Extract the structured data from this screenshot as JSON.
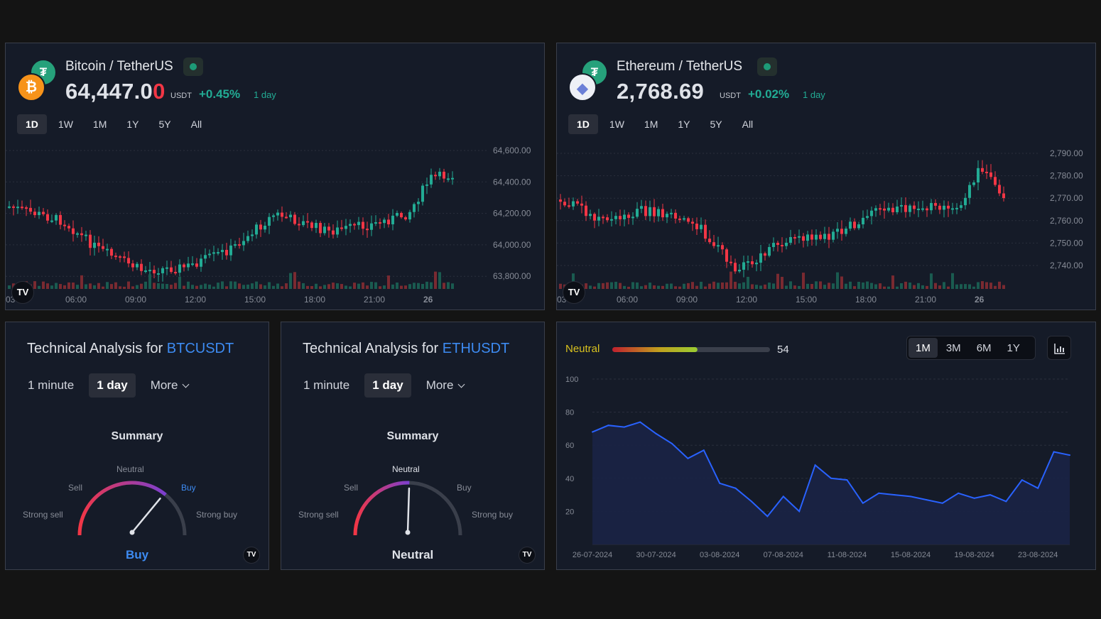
{
  "btc": {
    "pair": "Bitcoin / TetherUS",
    "base_icon": "bitcoin-icon",
    "quote_icon": "tether-icon",
    "base_glyph": "₿",
    "quote_glyph": "₮",
    "price_main": "64,447.0",
    "price_last": "0",
    "unit": "USDT",
    "change": "+0.45%",
    "period": "1 day",
    "ranges": [
      "1D",
      "1W",
      "1M",
      "1Y",
      "5Y",
      "All"
    ],
    "active_range": "1D",
    "y_ticks": [
      "64,600.00",
      "64,400.00",
      "64,200.00",
      "64,000.00",
      "63,800.00"
    ],
    "x_ticks": [
      "03",
      "06:00",
      "09:00",
      "12:00",
      "15:00",
      "18:00",
      "21:00",
      "26"
    ],
    "badge": "TV"
  },
  "eth": {
    "pair": "Ethereum / TetherUS",
    "base_icon": "ethereum-icon",
    "quote_icon": "tether-icon",
    "base_glyph": "◆",
    "quote_glyph": "₮",
    "price_main": "2,768.69",
    "price_last": "",
    "unit": "USDT",
    "change": "+0.02%",
    "period": "1 day",
    "ranges": [
      "1D",
      "1W",
      "1M",
      "1Y",
      "5Y",
      "All"
    ],
    "active_range": "1D",
    "y_ticks": [
      "2,790.00",
      "2,780.00",
      "2,770.00",
      "2,760.00",
      "2,750.00",
      "2,740.00"
    ],
    "x_ticks": [
      "03",
      "06:00",
      "09:00",
      "12:00",
      "15:00",
      "18:00",
      "21:00",
      "26"
    ],
    "badge": "TV"
  },
  "ta_btc": {
    "title_prefix": "Technical Analysis for ",
    "symbol": "BTCUSDT",
    "tabs": [
      "1 minute",
      "1 day",
      "More"
    ],
    "active_tab": "1 day",
    "summary": "Summary",
    "labels": {
      "strong_sell": "Strong sell",
      "sell": "Sell",
      "neutral": "Neutral",
      "buy": "Buy",
      "strong_buy": "Strong buy"
    },
    "result": "Buy",
    "result_color": "#3d8bf2",
    "needle_level": 0.72,
    "badge": "TV"
  },
  "ta_eth": {
    "title_prefix": "Technical Analysis for ",
    "symbol": "ETHUSDT",
    "tabs": [
      "1 minute",
      "1 day",
      "More"
    ],
    "active_tab": "1 day",
    "summary": "Summary",
    "labels": {
      "strong_sell": "Strong sell",
      "sell": "Sell",
      "neutral": "Neutral",
      "buy": "Buy",
      "strong_buy": "Strong buy"
    },
    "result": "Neutral",
    "result_color": "#dfe2e8",
    "needle_level": 0.51,
    "badge": "TV"
  },
  "fear_greed": {
    "label": "Neutral",
    "value": "54",
    "gauge_fraction": 0.54,
    "ranges": [
      "1M",
      "3M",
      "6M",
      "1Y"
    ],
    "active_range": "1M",
    "chart_button_icon": "bar-chart-icon"
  },
  "chart_data": [
    {
      "type": "line",
      "title": "",
      "xlabel": "",
      "ylabel": "",
      "x_tick_labels": [
        "26-07-2024",
        "30-07-2024",
        "03-08-2024",
        "07-08-2024",
        "11-08-2024",
        "15-08-2024",
        "19-08-2024",
        "23-08-2024"
      ],
      "y_ticks": [
        20,
        40,
        60,
        80,
        100
      ],
      "ylim": [
        0,
        100
      ],
      "grid": true,
      "x": [
        "26-07-2024",
        "27-07-2024",
        "28-07-2024",
        "29-07-2024",
        "30-07-2024",
        "31-07-2024",
        "01-08-2024",
        "02-08-2024",
        "03-08-2024",
        "04-08-2024",
        "05-08-2024",
        "06-08-2024",
        "07-08-2024",
        "08-08-2024",
        "09-08-2024",
        "10-08-2024",
        "11-08-2024",
        "12-08-2024",
        "13-08-2024",
        "14-08-2024",
        "15-08-2024",
        "16-08-2024",
        "17-08-2024",
        "18-08-2024",
        "19-08-2024",
        "20-08-2024",
        "21-08-2024",
        "22-08-2024",
        "23-08-2024",
        "24-08-2024",
        "25-08-2024"
      ],
      "values": [
        68,
        72,
        71,
        74,
        67,
        61,
        52,
        57,
        37,
        34,
        26,
        17,
        29,
        20,
        48,
        40,
        39,
        25,
        31,
        30,
        29,
        27,
        25,
        31,
        28,
        30,
        26,
        39,
        34,
        56,
        54
      ]
    }
  ]
}
